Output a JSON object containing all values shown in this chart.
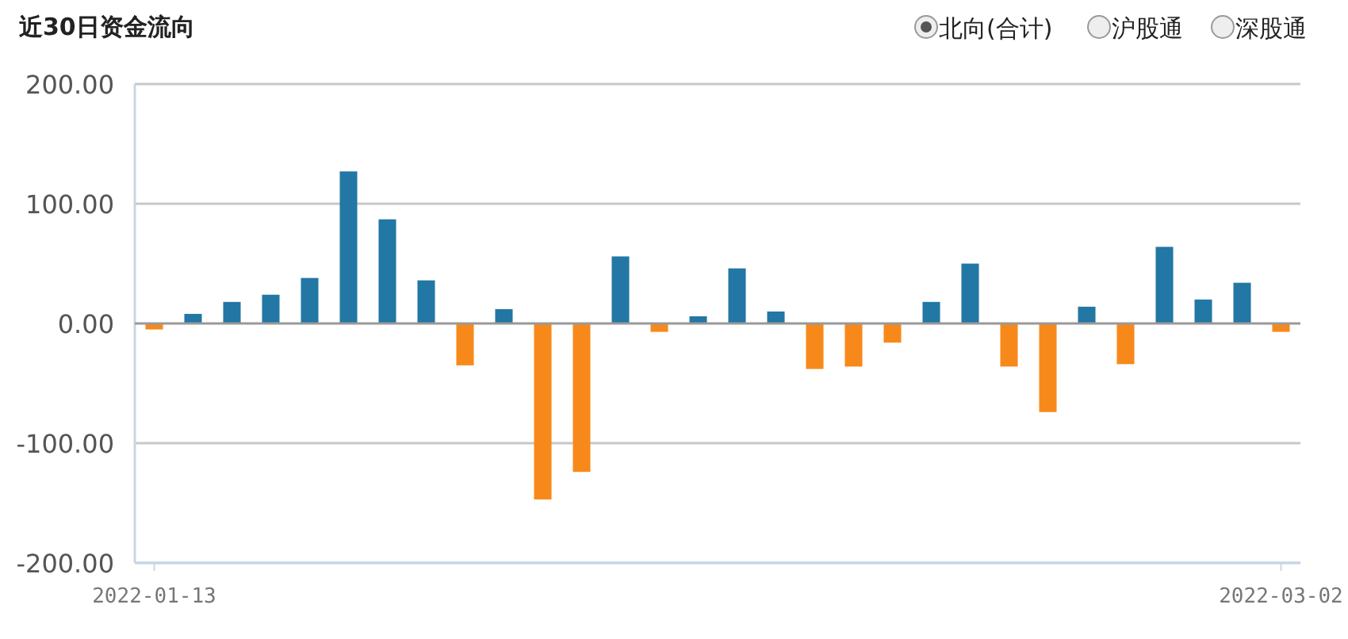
{
  "chart_data": {
    "type": "bar",
    "title": "近30日资金流向",
    "annotations": [
      "北向(合计)",
      "沪股通",
      "深股通"
    ],
    "categories": [
      "2022-01-13",
      null,
      null,
      null,
      null,
      null,
      null,
      null,
      null,
      null,
      null,
      null,
      null,
      null,
      null,
      null,
      null,
      null,
      null,
      null,
      null,
      null,
      null,
      null,
      null,
      null,
      null,
      null,
      null,
      "2022-03-02"
    ],
    "values": [
      -5,
      8,
      18,
      24,
      38,
      127,
      87,
      36,
      -35,
      12,
      -147,
      -124,
      56,
      -7,
      6,
      46,
      10,
      -38,
      -36,
      -16,
      18,
      50,
      -36,
      -74,
      14,
      -34,
      64,
      20,
      34,
      -7
    ],
    "colors": [
      "#f7891b",
      "#2277a4",
      "#2277a4",
      "#2277a4",
      "#2277a4",
      "#2277a4",
      "#2277a4",
      "#2277a4",
      "#f7891b",
      "#2277a4",
      "#f7891b",
      "#f7891b",
      "#2277a4",
      "#f7891b",
      "#2277a4",
      "#2277a4",
      "#2277a4",
      "#f7891b",
      "#f7891b",
      "#f7891b",
      "#2277a4",
      "#2277a4",
      "#f7891b",
      "#f7891b",
      "#2277a4",
      "#f7891b",
      "#2277a4",
      "#2277a4",
      "#2277a4",
      "#f7891b"
    ],
    "ylim": [
      -200,
      200
    ],
    "yticks": [
      {
        "value": -200,
        "label": "-200.00"
      },
      {
        "value": -100,
        "label": "-100.00"
      },
      {
        "value": 0,
        "label": "0.00"
      },
      {
        "value": 100,
        "label": "100.00"
      },
      {
        "value": 200,
        "label": "200.00"
      }
    ],
    "grid": "y"
  }
}
